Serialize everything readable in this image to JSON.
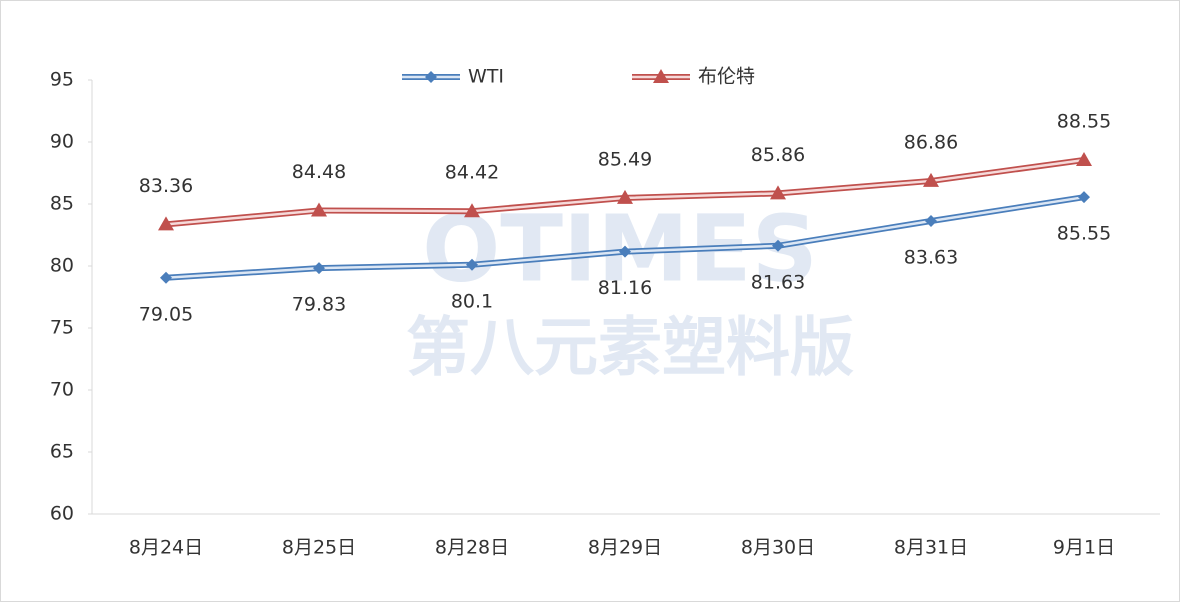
{
  "chart_data": {
    "type": "line",
    "categories": [
      "8月24日",
      "8月25日",
      "8月28日",
      "8月29日",
      "8月30日",
      "8月31日",
      "9月1日"
    ],
    "series": [
      {
        "name": "WTI",
        "color": "#4a7ebb",
        "marker": "diamond",
        "values": [
          79.05,
          79.83,
          80.1,
          81.16,
          81.63,
          83.63,
          85.55
        ]
      },
      {
        "name": "布伦特",
        "color": "#c0504d",
        "marker": "triangle",
        "values": [
          83.36,
          84.48,
          84.42,
          85.49,
          85.86,
          86.86,
          88.55
        ]
      }
    ],
    "ylim": [
      60,
      95
    ],
    "yticks": [
      60,
      65,
      70,
      75,
      80,
      85,
      90,
      95
    ],
    "grid": false,
    "legend": "top",
    "watermark": [
      "OTIMES",
      "第八元素塑料版"
    ]
  }
}
